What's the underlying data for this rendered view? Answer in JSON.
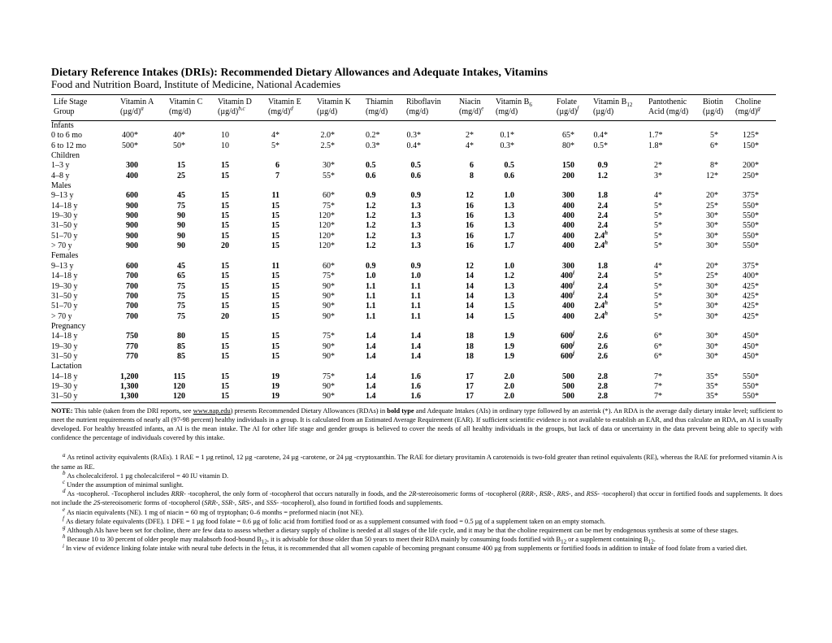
{
  "page": {
    "title": "Dietary Reference Intakes (DRIs): Recommended Dietary Allowances and Adequate Intakes, Vitamins",
    "subtitle": "Food and Nutrition Board, Institute of Medicine, National Academies"
  },
  "table": {
    "columns": [
      {
        "name": "life-stage",
        "line1": "Life Stage",
        "line2": "Group"
      },
      {
        "name": "vitamin-a",
        "line1": "Vitamin A",
        "line2": "(µg/d)^{a}"
      },
      {
        "name": "vitamin-c",
        "line1": "Vitamin C",
        "line2": "(mg/d)"
      },
      {
        "name": "vitamin-d",
        "line1": "Vitamin D",
        "line2": "(µg/d)^{b,c}"
      },
      {
        "name": "vitamin-e",
        "line1": "Vitamin E",
        "line2": "(mg/d)^{d}"
      },
      {
        "name": "vitamin-k",
        "line1": "Vitamin K",
        "line2": "(µg/d)"
      },
      {
        "name": "thiamin",
        "line1": "Thiamin",
        "line2": "(mg/d)"
      },
      {
        "name": "riboflavin",
        "line1": "Riboflavin",
        "line2": "(mg/d)"
      },
      {
        "name": "niacin",
        "line1": "Niacin",
        "line2": "(mg/d)^{e}"
      },
      {
        "name": "vitamin-b6",
        "line1": "Vitamin B_{6}",
        "line2": "(mg/d)"
      },
      {
        "name": "folate",
        "line1": "Folate",
        "line2": "(µg/d)^{f}"
      },
      {
        "name": "vitamin-b12",
        "line1": "Vitamin B_{12}",
        "line2": "(µg/d)"
      },
      {
        "name": "pantothenic-acid",
        "line1": "Pantothenic",
        "line2": "Acid (mg/d)"
      },
      {
        "name": "biotin",
        "line1": "Biotin",
        "line2": "(µg/d)"
      },
      {
        "name": "choline",
        "line1": "Choline",
        "line2": "(mg/d)^{g}"
      }
    ],
    "sections": [
      {
        "label": "Infants",
        "rda_bold": false,
        "rows": [
          {
            "age": "0 to 6 mo",
            "values": [
              "400*",
              "40*",
              "10",
              "4*",
              "2.0*",
              "0.2*",
              "0.3*",
              "2*",
              "0.1*",
              "65*",
              "0.4*",
              "1.7*",
              "5*",
              "125*"
            ]
          },
          {
            "age": "6 to 12 mo",
            "values": [
              "500*",
              "50*",
              "10",
              "5*",
              "2.5*",
              "0.3*",
              "0.4*",
              "4*",
              "0.3*",
              "80*",
              "0.5*",
              "1.8*",
              "6*",
              "150*"
            ]
          }
        ]
      },
      {
        "label": "Children",
        "rda_bold": true,
        "rows": [
          {
            "age": "1–3 y",
            "values": [
              "300",
              "15",
              "15",
              "6",
              "30*",
              "0.5",
              "0.5",
              "6",
              "0.5",
              "150",
              "0.9",
              "2*",
              "8*",
              "200*"
            ]
          },
          {
            "age": "4–8 y",
            "values": [
              "400",
              "25",
              "15",
              "7",
              "55*",
              "0.6",
              "0.6",
              "8",
              "0.6",
              "200",
              "1.2",
              "3*",
              "12*",
              "250*"
            ]
          }
        ]
      },
      {
        "label": "Males",
        "rda_bold": true,
        "rows": [
          {
            "age": "9–13 y",
            "values": [
              "600",
              "45",
              "15",
              "11",
              "60*",
              "0.9",
              "0.9",
              "12",
              "1.0",
              "300",
              "1.8",
              "4*",
              "20*",
              "375*"
            ]
          },
          {
            "age": "14–18 y",
            "values": [
              "900",
              "75",
              "15",
              "15",
              "75*",
              "1.2",
              "1.3",
              "16",
              "1.3",
              "400",
              "2.4",
              "5*",
              "25*",
              "550*"
            ]
          },
          {
            "age": "19–30 y",
            "values": [
              "900",
              "90",
              "15",
              "15",
              "120*",
              "1.2",
              "1.3",
              "16",
              "1.3",
              "400",
              "2.4",
              "5*",
              "30*",
              "550*"
            ]
          },
          {
            "age": "31–50 y",
            "values": [
              "900",
              "90",
              "15",
              "15",
              "120*",
              "1.2",
              "1.3",
              "16",
              "1.3",
              "400",
              "2.4",
              "5*",
              "30*",
              "550*"
            ]
          },
          {
            "age": "51–70 y",
            "values": [
              "900",
              "90",
              "15",
              "15",
              "120*",
              "1.2",
              "1.3",
              "16",
              "1.7",
              "400",
              "2.4^{h}",
              "5*",
              "30*",
              "550*"
            ]
          },
          {
            "age": "> 70 y",
            "values": [
              "900",
              "90",
              "20",
              "15",
              "120*",
              "1.2",
              "1.3",
              "16",
              "1.7",
              "400",
              "2.4^{h}",
              "5*",
              "30*",
              "550*"
            ]
          }
        ]
      },
      {
        "label": "Females",
        "rda_bold": true,
        "rows": [
          {
            "age": "9–13 y",
            "values": [
              "600",
              "45",
              "15",
              "11",
              "60*",
              "0.9",
              "0.9",
              "12",
              "1.0",
              "300",
              "1.8",
              "4*",
              "20*",
              "375*"
            ]
          },
          {
            "age": "14–18 y",
            "values": [
              "700",
              "65",
              "15",
              "15",
              "75*",
              "1.0",
              "1.0",
              "14",
              "1.2",
              "400^{i}",
              "2.4",
              "5*",
              "25*",
              "400*"
            ]
          },
          {
            "age": "19–30 y",
            "values": [
              "700",
              "75",
              "15",
              "15",
              "90*",
              "1.1",
              "1.1",
              "14",
              "1.3",
              "400^{i}",
              "2.4",
              "5*",
              "30*",
              "425*"
            ]
          },
          {
            "age": "31–50 y",
            "values": [
              "700",
              "75",
              "15",
              "15",
              "90*",
              "1.1",
              "1.1",
              "14",
              "1.3",
              "400^{i}",
              "2.4",
              "5*",
              "30*",
              "425*"
            ]
          },
          {
            "age": "51–70 y",
            "values": [
              "700",
              "75",
              "15",
              "15",
              "90*",
              "1.1",
              "1.1",
              "14",
              "1.5",
              "400",
              "2.4^{h}",
              "5*",
              "30*",
              "425*"
            ]
          },
          {
            "age": "> 70 y",
            "values": [
              "700",
              "75",
              "20",
              "15",
              "90*",
              "1.1",
              "1.1",
              "14",
              "1.5",
              "400",
              "2.4^{h}",
              "5*",
              "30*",
              "425*"
            ]
          }
        ]
      },
      {
        "label": "Pregnancy",
        "rda_bold": true,
        "rows": [
          {
            "age": "14–18 y",
            "values": [
              "750",
              "80",
              "15",
              "15",
              "75*",
              "1.4",
              "1.4",
              "18",
              "1.9",
              "600^{j}",
              "2.6",
              "6*",
              "30*",
              "450*"
            ]
          },
          {
            "age": "19–30 y",
            "values": [
              "770",
              "85",
              "15",
              "15",
              "90*",
              "1.4",
              "1.4",
              "18",
              "1.9",
              "600^{j}",
              "2.6",
              "6*",
              "30*",
              "450*"
            ]
          },
          {
            "age": "31–50 y",
            "values": [
              "770",
              "85",
              "15",
              "15",
              "90*",
              "1.4",
              "1.4",
              "18",
              "1.9",
              "600^{j}",
              "2.6",
              "6*",
              "30*",
              "450*"
            ]
          }
        ]
      },
      {
        "label": "Lactation",
        "rda_bold": true,
        "rows": [
          {
            "age": "14–18 y",
            "values": [
              "1,200",
              "115",
              "15",
              "19",
              "75*",
              "1.4",
              "1.6",
              "17",
              "2.0",
              "500",
              "2.8",
              "7*",
              "35*",
              "550*"
            ]
          },
          {
            "age": "19–30 y",
            "values": [
              "1,300",
              "120",
              "15",
              "19",
              "90*",
              "1.4",
              "1.6",
              "17",
              "2.0",
              "500",
              "2.8",
              "7*",
              "35*",
              "550*"
            ]
          },
          {
            "age": "31–50 y",
            "values": [
              "1,300",
              "120",
              "15",
              "19",
              "90*",
              "1.4",
              "1.6",
              "17",
              "2.0",
              "500",
              "2.8",
              "7*",
              "35*",
              "550*"
            ]
          }
        ]
      }
    ]
  },
  "note": "{b}NOTE:{/b} This table (taken from the DRI reports, see {u}www.nap.edu{/u}) presents Recommended Dietary Allowances (RDAs) in {b}bold type{/b} and Adequate Intakes (AIs) in ordinary type followed by an asterisk (*). An RDA is the average daily dietary intake level; sufficient to meet the nutrient requirements of nearly all (97-98 percent) healthy individuals in a group. It is calculated from an Estimated Average Requirement (EAR). If sufficient scientific evidence is not available to establish an EAR, and thus calculate an RDA, an AI is usually developed. For healthy breastfed infants, an AI is the mean intake. The AI for other life stage and gender groups is believed to cover the needs of all healthy individuals in the groups, but lack of data or uncertainty in the data prevent being able to specify with confidence the percentage of individuals covered by this intake.",
  "footnotes": [
    {
      "sup": "a",
      "text": "As retinol activity equivalents (RAEs). 1 RAE = 1 µg retinol, 12 µg  -carotene, 24 µg  -carotene, or 24 µg  -cryptoxanthin. The RAE for dietary provitamin A carotenoids is two-fold greater than retinol equivalents (RE), whereas the RAE for preformed vitamin A is the same as RE."
    },
    {
      "sup": "b",
      "text": "As cholecalciferol. 1 µg cholecalciferol = 40 IU vitamin D."
    },
    {
      "sup": "c",
      "text": "Under the assumption of minimal sunlight."
    },
    {
      "sup": "d",
      "text": "As  -tocopherol.  -Tocopherol includes {i}RRR{/i}-  -tocopherol, the only form of  -tocopherol that occurs naturally in foods, and the {i}2R{/i}-stereoisomeric forms of  -tocopherol ({i}RRR{/i}-, {i}RSR{/i}-, {i}RRS{/i}-, and {i}RSS{/i}-  -tocopherol) that occur in fortified foods and supplements. It does not include the {i}2S{/i}-stereoisomeric forms of  -tocopherol ({i}SRR{/i}-, {i}SSR{/i}-, {i}SRS{/i}-, and {i}SSS{/i}-  -tocopherol), also found in fortified foods and supplements."
    },
    {
      "sup": "e",
      "text": "As niacin equivalents (NE). 1 mg of niacin = 60 mg of tryptophan; 0–6 months = preformed niacin (not NE)."
    },
    {
      "sup": "f",
      "text": "As dietary folate equivalents (DFE). 1 DFE = 1 µg food folate = 0.6 µg of folic acid from fortified food or as a supplement consumed with food = 0.5 µg of a supplement taken on an empty stomach."
    },
    {
      "sup": "g",
      "text": "Although AIs have been set for choline, there are few data to assess whether a dietary supply of choline is needed at all stages of the life cycle, and it may be that the choline requirement can be met by endogenous synthesis at some of these stages."
    },
    {
      "sup": "h",
      "text": "Because 10 to 30 percent of older people may malabsorb food-bound B_{12}, it is advisable for those older than 50 years to meet their RDA mainly by consuming foods fortified with B_{12} or a supplement containing B_{12}."
    },
    {
      "sup": "i",
      "text": "In view of evidence linking folate intake with neural tube defects in the fetus, it is recommended that all women capable of becoming pregnant consume 400 µg from supplements or fortified foods in addition to intake of food folate from a varied diet."
    }
  ]
}
